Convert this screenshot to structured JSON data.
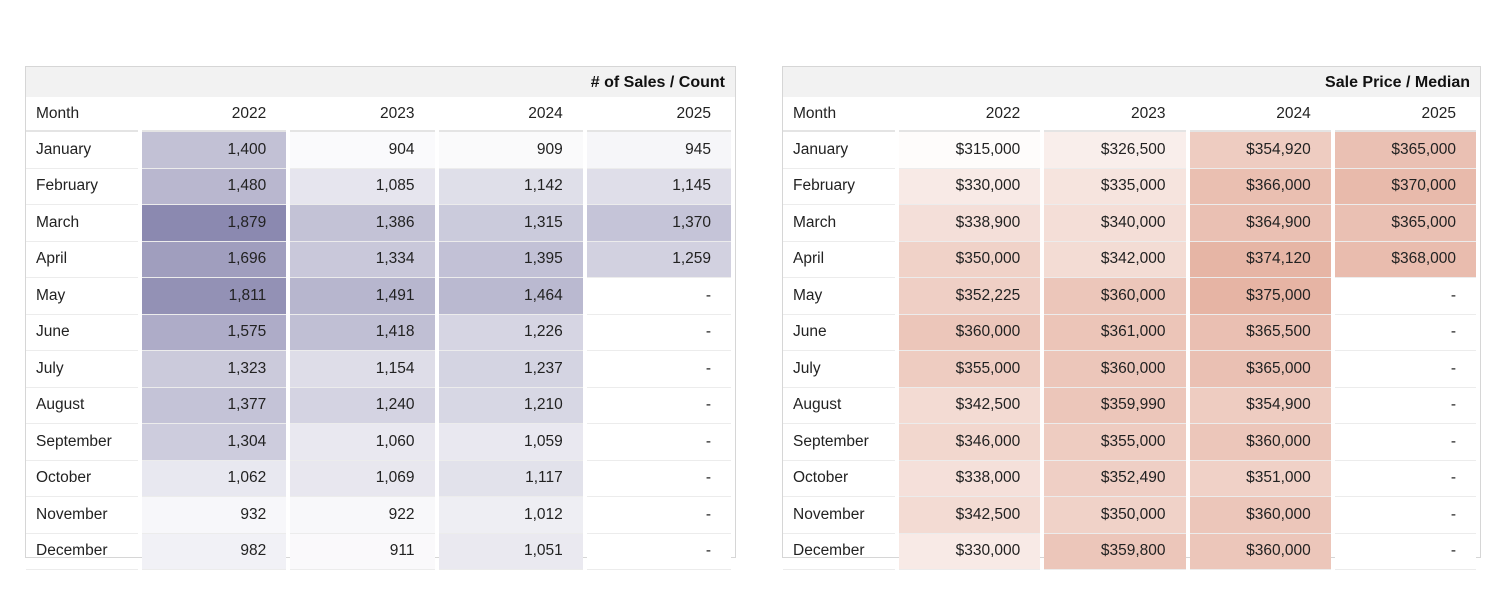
{
  "sales": {
    "title": "# of Sales / Count",
    "month_header": "Month",
    "years": [
      "2022",
      "2023",
      "2024",
      "2025"
    ],
    "rows": [
      {
        "month": "January",
        "values": [
          "1,400",
          "904",
          "909",
          "945"
        ]
      },
      {
        "month": "February",
        "values": [
          "1,480",
          "1,085",
          "1,142",
          "1,145"
        ]
      },
      {
        "month": "March",
        "values": [
          "1,879",
          "1,386",
          "1,315",
          "1,370"
        ]
      },
      {
        "month": "April",
        "values": [
          "1,696",
          "1,334",
          "1,395",
          "1,259"
        ]
      },
      {
        "month": "May",
        "values": [
          "1,811",
          "1,491",
          "1,464",
          "-"
        ]
      },
      {
        "month": "June",
        "values": [
          "1,575",
          "1,418",
          "1,226",
          "-"
        ]
      },
      {
        "month": "July",
        "values": [
          "1,323",
          "1,154",
          "1,237",
          "-"
        ]
      },
      {
        "month": "August",
        "values": [
          "1,377",
          "1,240",
          "1,210",
          "-"
        ]
      },
      {
        "month": "September",
        "values": [
          "1,304",
          "1,060",
          "1,059",
          "-"
        ]
      },
      {
        "month": "October",
        "values": [
          "1,062",
          "1,069",
          "1,117",
          "-"
        ]
      },
      {
        "month": "November",
        "values": [
          "932",
          "922",
          "1,012",
          "-"
        ]
      },
      {
        "month": "December",
        "values": [
          "982",
          "911",
          "1,051",
          "-"
        ]
      }
    ],
    "heat_color": "#8b89b0"
  },
  "price": {
    "title": "Sale Price / Median",
    "month_header": "Month",
    "years": [
      "2022",
      "2023",
      "2024",
      "2025"
    ],
    "rows": [
      {
        "month": "January",
        "values": [
          "$315,000",
          "$326,500",
          "$354,920",
          "$365,000"
        ]
      },
      {
        "month": "February",
        "values": [
          "$330,000",
          "$335,000",
          "$366,000",
          "$370,000"
        ]
      },
      {
        "month": "March",
        "values": [
          "$338,900",
          "$340,000",
          "$364,900",
          "$365,000"
        ]
      },
      {
        "month": "April",
        "values": [
          "$350,000",
          "$342,000",
          "$374,120",
          "$368,000"
        ]
      },
      {
        "month": "May",
        "values": [
          "$352,225",
          "$360,000",
          "$375,000",
          "-"
        ]
      },
      {
        "month": "June",
        "values": [
          "$360,000",
          "$361,000",
          "$365,500",
          "-"
        ]
      },
      {
        "month": "July",
        "values": [
          "$355,000",
          "$360,000",
          "$365,000",
          "-"
        ]
      },
      {
        "month": "August",
        "values": [
          "$342,500",
          "$359,990",
          "$354,900",
          "-"
        ]
      },
      {
        "month": "September",
        "values": [
          "$346,000",
          "$355,000",
          "$360,000",
          "-"
        ]
      },
      {
        "month": "October",
        "values": [
          "$338,000",
          "$352,490",
          "$351,000",
          "-"
        ]
      },
      {
        "month": "November",
        "values": [
          "$342,500",
          "$350,000",
          "$360,000",
          "-"
        ]
      },
      {
        "month": "December",
        "values": [
          "$330,000",
          "$359,800",
          "$360,000",
          "-"
        ]
      }
    ],
    "heat_color": "#e6b4a4"
  }
}
